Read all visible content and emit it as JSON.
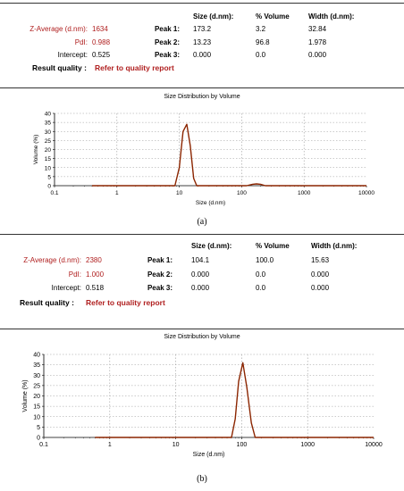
{
  "panels": [
    {
      "caption": "(a)",
      "headers": {
        "size": "Size (d.nm):",
        "volume": "% Volume",
        "width": "Width (d.nm):"
      },
      "z_average_label": "Z-Average (d.nm):",
      "z_average_value": "1634",
      "pdi_label": "PdI:",
      "pdi_value": "0.988",
      "intercept_label": "Intercept:",
      "intercept_value": "0.525",
      "result_quality_label": "Result quality :",
      "result_quality_value": "Refer to quality report",
      "peaks": [
        {
          "label": "Peak 1:",
          "size": "173.2",
          "volume": "3.2",
          "width": "32.84"
        },
        {
          "label": "Peak 2:",
          "size": "13.23",
          "volume": "96.8",
          "width": "1.978"
        },
        {
          "label": "Peak 3:",
          "size": "0.000",
          "volume": "0.0",
          "width": "0.000"
        }
      ]
    },
    {
      "caption": "(b)",
      "headers": {
        "size": "Size (d.nm):",
        "volume": "% Volume",
        "width": "Width (d.nm):"
      },
      "z_average_label": "Z-Average (d.nm):",
      "z_average_value": "2380",
      "pdi_label": "PdI:",
      "pdi_value": "1.000",
      "intercept_label": "Intercept:",
      "intercept_value": "0.518",
      "result_quality_label": "Result quality :",
      "result_quality_value": "Refer to quality report",
      "peaks": [
        {
          "label": "Peak 1:",
          "size": "104.1",
          "volume": "100.0",
          "width": "15.63"
        },
        {
          "label": "Peak 2:",
          "size": "0.000",
          "volume": "0.0",
          "width": "0.000"
        },
        {
          "label": "Peak 3:",
          "size": "0.000",
          "volume": "0.0",
          "width": "0.000"
        }
      ]
    }
  ],
  "chart_data": [
    {
      "type": "line",
      "title": "Size Distribution by Volume",
      "xlabel": "Size (d.nm)",
      "ylabel": "Volume (%)",
      "xscale": "log",
      "xlim": [
        0.1,
        10000
      ],
      "ylim": [
        0,
        40
      ],
      "xticks": [
        "0.1",
        "1",
        "10",
        "100",
        "1000",
        "10000"
      ],
      "yticks": [
        "0",
        "5",
        "10",
        "15",
        "20",
        "25",
        "30",
        "35",
        "40"
      ],
      "grid": true,
      "line_color": "#8b2500",
      "series": [
        {
          "x": [
            0.4,
            8.5,
            10.0,
            11.5,
            13.2,
            15.0,
            17.0,
            19.0,
            120,
            150,
            173,
            200,
            240,
            10000
          ],
          "y": [
            0,
            0,
            10,
            30,
            34,
            22,
            4,
            0,
            0,
            0.8,
            1.0,
            0.8,
            0,
            0
          ]
        }
      ]
    },
    {
      "type": "line",
      "title": "Size Distribution by Volume",
      "xlabel": "Size (d.nm)",
      "ylabel": "Volume (%)",
      "xscale": "log",
      "xlim": [
        0.1,
        10000
      ],
      "ylim": [
        0,
        40
      ],
      "xticks": [
        "0.1",
        "1",
        "10",
        "100",
        "1000",
        "10000"
      ],
      "yticks": [
        "0",
        "5",
        "10",
        "15",
        "20",
        "25",
        "30",
        "35",
        "40"
      ],
      "grid": true,
      "line_color": "#8b2500",
      "series": [
        {
          "x": [
            0.6,
            70,
            80,
            90,
            104,
            120,
            140,
            160,
            10000
          ],
          "y": [
            0,
            0,
            9,
            27,
            36,
            24,
            7,
            0,
            0
          ]
        }
      ]
    }
  ]
}
